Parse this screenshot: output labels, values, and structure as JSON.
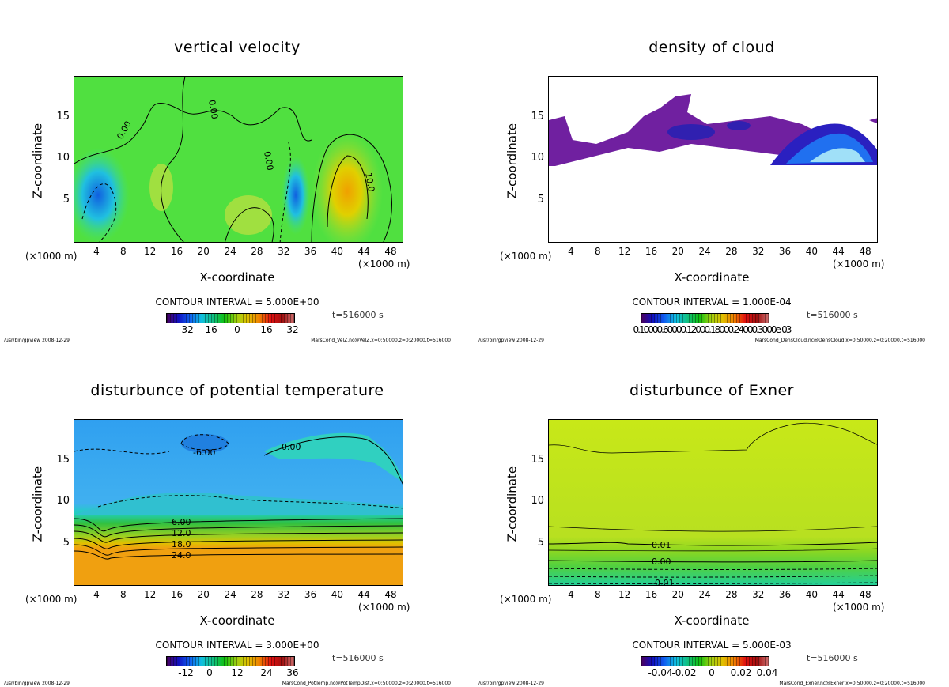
{
  "panels": [
    {
      "title": "vertical velocity",
      "ylabel": "Z-coordinate",
      "xlabel": "X-coordinate",
      "x_ticks": [
        "4",
        "8",
        "12",
        "16",
        "20",
        "24",
        "28",
        "32",
        "36",
        "40",
        "44",
        "48"
      ],
      "y_ticks": [
        "5",
        "10",
        "15"
      ],
      "x_unit_left": "(×1000 m)",
      "x_unit_right": "(×1000 m)",
      "contour_interval": "CONTOUR INTERVAL = 5.000E+00",
      "colorbar_ticks": [
        "-32",
        "-16",
        "0",
        "16",
        "32"
      ],
      "time": "t=516000 s",
      "footer_left": "/usr/bin/gpview  2008-12-29",
      "footer_right": "MarsCond_VelZ.nc@VelZ,x=0:50000,z=0:20000,t=516000",
      "contour_labels": [
        "0.00",
        "0.00",
        "0.00",
        "10.0"
      ],
      "field": "velz"
    },
    {
      "title": "density of cloud",
      "ylabel": "Z-coordinate",
      "xlabel": "X-coordinate",
      "x_ticks": [
        "4",
        "8",
        "12",
        "16",
        "20",
        "24",
        "28",
        "32",
        "36",
        "40",
        "44",
        "48"
      ],
      "y_ticks": [
        "5",
        "10",
        "15"
      ],
      "x_unit_left": "(×1000 m)",
      "x_unit_right": "(×1000 m)",
      "contour_interval": "CONTOUR INTERVAL = 1.000E-04",
      "colorbar_text": "0.10000.60000.12000.18000.24000.3000e-03",
      "time": "t=516000 s",
      "footer_left": "/usr/bin/gpview  2008-12-29",
      "footer_right": "MarsCond_DensCloud.nc@DensCloud,x=0:50000,z=0:20000,t=516000",
      "contour_labels": [],
      "field": "cloud"
    },
    {
      "title": "disturbunce of potential temperature",
      "ylabel": "Z-coordinate",
      "xlabel": "X-coordinate",
      "x_ticks": [
        "4",
        "8",
        "12",
        "16",
        "20",
        "24",
        "28",
        "32",
        "36",
        "40",
        "44",
        "48"
      ],
      "y_ticks": [
        "5",
        "10",
        "15"
      ],
      "x_unit_left": "(×1000 m)",
      "x_unit_right": "(×1000 m)",
      "contour_interval": "CONTOUR INTERVAL = 3.000E+00",
      "colorbar_ticks": [
        "-12",
        "0",
        "12",
        "24",
        "36"
      ],
      "time": "t=516000 s",
      "footer_left": "/usr/bin/gpview  2008-12-29",
      "footer_right": "MarsCond_PotTemp.nc@PotTempDist,x=0:50000,z=0:20000,t=516000",
      "contour_labels": [
        "0.00",
        "-6.00",
        "6.00",
        "12.0",
        "18.0",
        "24.0"
      ],
      "field": "ptemp"
    },
    {
      "title": "disturbunce of Exner",
      "ylabel": "Z-coordinate",
      "xlabel": "X-coordinate",
      "x_ticks": [
        "4",
        "8",
        "12",
        "16",
        "20",
        "24",
        "28",
        "32",
        "36",
        "40",
        "44",
        "48"
      ],
      "y_ticks": [
        "5",
        "10",
        "15"
      ],
      "x_unit_left": "(×1000 m)",
      "x_unit_right": "(×1000 m)",
      "contour_interval": "CONTOUR INTERVAL = 5.000E-03",
      "colorbar_ticks": [
        "-0.04",
        "-0.02",
        "0",
        "0.02",
        "0.04"
      ],
      "time": "t=516000 s",
      "footer_left": "/usr/bin/gpview  2008-12-29",
      "footer_right": "MarsCond_Exner.nc@Exner,x=0:50000,z=0:20000,t=516000",
      "contour_labels": [
        "0.01",
        "0.00",
        "-0.01"
      ],
      "field": "exner"
    }
  ],
  "chart_data": [
    {
      "type": "heatmap",
      "title": "vertical velocity",
      "xlabel": "X-coordinate",
      "ylabel": "Z-coordinate",
      "xlim": [
        0,
        50
      ],
      "ylim": [
        0,
        20
      ],
      "colorbar_range": [
        -40,
        40
      ],
      "contour_interval": 5
    },
    {
      "type": "heatmap",
      "title": "density of cloud",
      "xlabel": "X-coordinate",
      "ylabel": "Z-coordinate",
      "xlim": [
        0,
        50
      ],
      "ylim": [
        0,
        20
      ],
      "contour_interval": 0.0001
    },
    {
      "type": "heatmap",
      "title": "disturbunce of potential temperature",
      "xlabel": "X-coordinate",
      "ylabel": "Z-coordinate",
      "xlim": [
        0,
        50
      ],
      "ylim": [
        0,
        20
      ],
      "colorbar_range": [
        -18,
        42
      ],
      "contour_interval": 3
    },
    {
      "type": "heatmap",
      "title": "disturbunce of Exner",
      "xlabel": "X-coordinate",
      "ylabel": "Z-coordinate",
      "xlim": [
        0,
        50
      ],
      "ylim": [
        0,
        20
      ],
      "colorbar_range": [
        -0.05,
        0.05
      ],
      "contour_interval": 0.005
    }
  ]
}
